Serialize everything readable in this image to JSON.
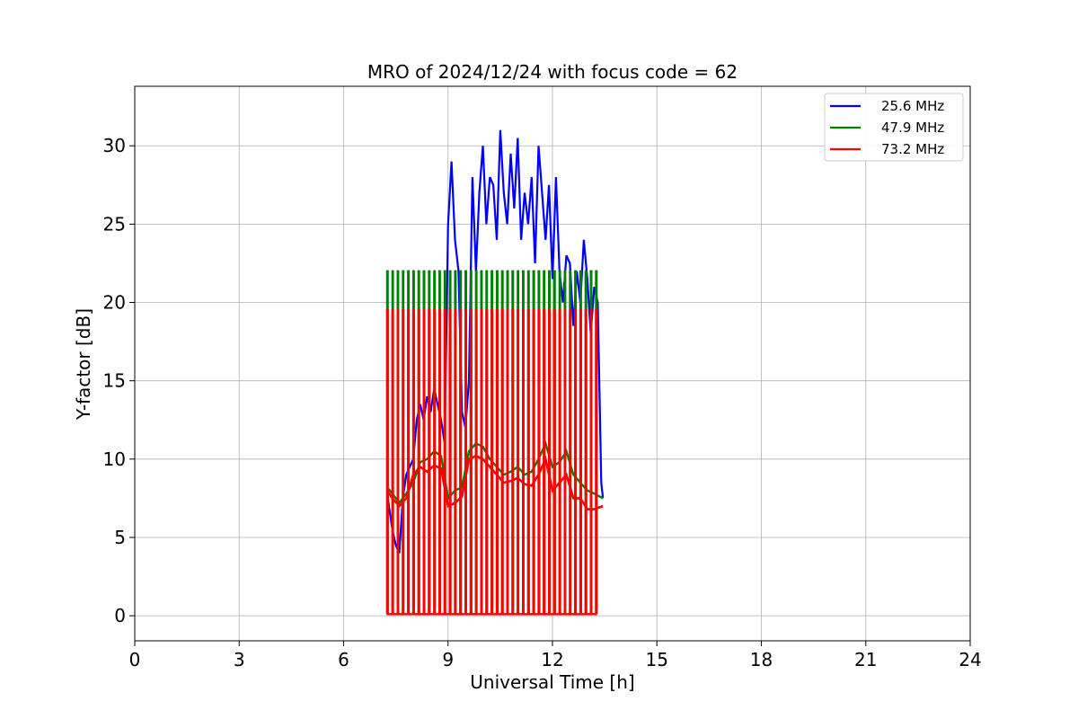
{
  "chart_data": {
    "type": "line",
    "title": "MRO of 2024/12/24 with focus code = 62",
    "xlabel": "Universal Time [h]",
    "ylabel": "Y-factor [dB]",
    "xlim": [
      0,
      24
    ],
    "ylim": [
      -1.6,
      33.8
    ],
    "xticks": [
      0,
      3,
      6,
      9,
      12,
      15,
      18,
      21,
      24
    ],
    "yticks": [
      0,
      5,
      10,
      15,
      20,
      25,
      30
    ],
    "grid": true,
    "legend_position": "top-right",
    "series": [
      {
        "name": "25.6 MHz",
        "color": "#0000ff",
        "x": [
          7.25,
          7.3,
          7.4,
          7.5,
          7.6,
          7.7,
          7.8,
          7.9,
          8.0,
          8.1,
          8.2,
          8.3,
          8.4,
          8.5,
          8.6,
          8.7,
          8.8,
          8.9,
          9.0,
          9.1,
          9.2,
          9.3,
          9.4,
          9.5,
          9.6,
          9.7,
          9.8,
          9.9,
          10.0,
          10.1,
          10.2,
          10.3,
          10.4,
          10.5,
          10.6,
          10.7,
          10.8,
          10.9,
          11.0,
          11.1,
          11.2,
          11.3,
          11.4,
          11.5,
          11.6,
          11.7,
          11.8,
          11.9,
          12.0,
          12.1,
          12.2,
          12.3,
          12.4,
          12.5,
          12.6,
          12.7,
          12.8,
          12.9,
          13.0,
          13.1,
          13.2,
          13.3,
          13.4,
          13.45
        ],
        "y": [
          8.0,
          7.0,
          5.5,
          4.5,
          4.0,
          7.5,
          9.0,
          9.5,
          10.0,
          12.5,
          13.5,
          12.5,
          14.0,
          13.0,
          14.5,
          13.5,
          12.5,
          11.0,
          25.0,
          29.0,
          24.0,
          22.0,
          13.0,
          12.0,
          15.0,
          28.0,
          22.0,
          27.0,
          30.0,
          25.0,
          28.0,
          27.5,
          24.0,
          31.0,
          27.0,
          25.0,
          29.5,
          26.0,
          30.5,
          24.0,
          27.0,
          25.0,
          28.0,
          22.5,
          30.0,
          27.0,
          24.0,
          27.5,
          21.5,
          28.0,
          22.0,
          20.0,
          23.0,
          22.5,
          18.5,
          22.0,
          20.0,
          24.0,
          21.5,
          18.0,
          21.0,
          20.0,
          8.5,
          7.5
        ]
      },
      {
        "name": "47.9 MHz",
        "color": "#008000",
        "x": [
          7.25,
          7.4,
          7.6,
          7.8,
          8.0,
          8.2,
          8.4,
          8.6,
          8.8,
          9.0,
          9.2,
          9.4,
          9.6,
          9.8,
          10.0,
          10.2,
          10.4,
          10.6,
          10.8,
          11.0,
          11.2,
          11.4,
          11.6,
          11.8,
          12.0,
          12.2,
          12.4,
          12.6,
          12.8,
          13.0,
          13.2,
          13.45
        ],
        "y": [
          8.2,
          7.8,
          7.2,
          7.8,
          8.5,
          9.8,
          10.0,
          10.5,
          10.2,
          7.5,
          8.0,
          8.2,
          10.5,
          11.0,
          10.8,
          10.0,
          9.5,
          9.0,
          9.2,
          9.5,
          9.0,
          9.2,
          10.0,
          11.0,
          9.5,
          9.8,
          10.5,
          9.0,
          8.5,
          8.0,
          7.8,
          7.5
        ]
      },
      {
        "name": "73.2 MHz",
        "color": "#ff0000",
        "x": [
          7.25,
          7.4,
          7.6,
          7.8,
          8.0,
          8.2,
          8.4,
          8.6,
          8.8,
          9.0,
          9.2,
          9.4,
          9.6,
          9.8,
          10.0,
          10.2,
          10.4,
          10.6,
          10.8,
          11.0,
          11.2,
          11.4,
          11.6,
          11.8,
          12.0,
          12.2,
          12.4,
          12.6,
          12.8,
          13.0,
          13.2,
          13.45
        ],
        "y": [
          8.0,
          7.5,
          7.0,
          7.5,
          9.0,
          9.5,
          9.2,
          9.6,
          9.4,
          7.0,
          7.2,
          7.6,
          10.0,
          10.2,
          10.0,
          9.5,
          9.0,
          8.5,
          8.6,
          8.8,
          8.4,
          8.3,
          9.0,
          10.0,
          8.0,
          8.5,
          9.0,
          7.5,
          7.5,
          6.8,
          6.8,
          7.0
        ]
      }
    ],
    "calibration_spikes": {
      "x": [
        7.25,
        7.4,
        7.55,
        7.7,
        7.85,
        8.0,
        8.15,
        8.3,
        8.45,
        8.6,
        8.75,
        8.9,
        9.05,
        9.2,
        9.35,
        9.5,
        9.65,
        9.8,
        9.95,
        10.1,
        10.25,
        10.4,
        10.55,
        10.7,
        10.85,
        11.0,
        11.15,
        11.3,
        11.45,
        11.6,
        11.75,
        11.9,
        12.05,
        12.2,
        12.35,
        12.5,
        12.65,
        12.8,
        12.95,
        13.1,
        13.25
      ],
      "green_top": 22.0,
      "red_top": 19.5,
      "bottom": 0.1
    }
  }
}
